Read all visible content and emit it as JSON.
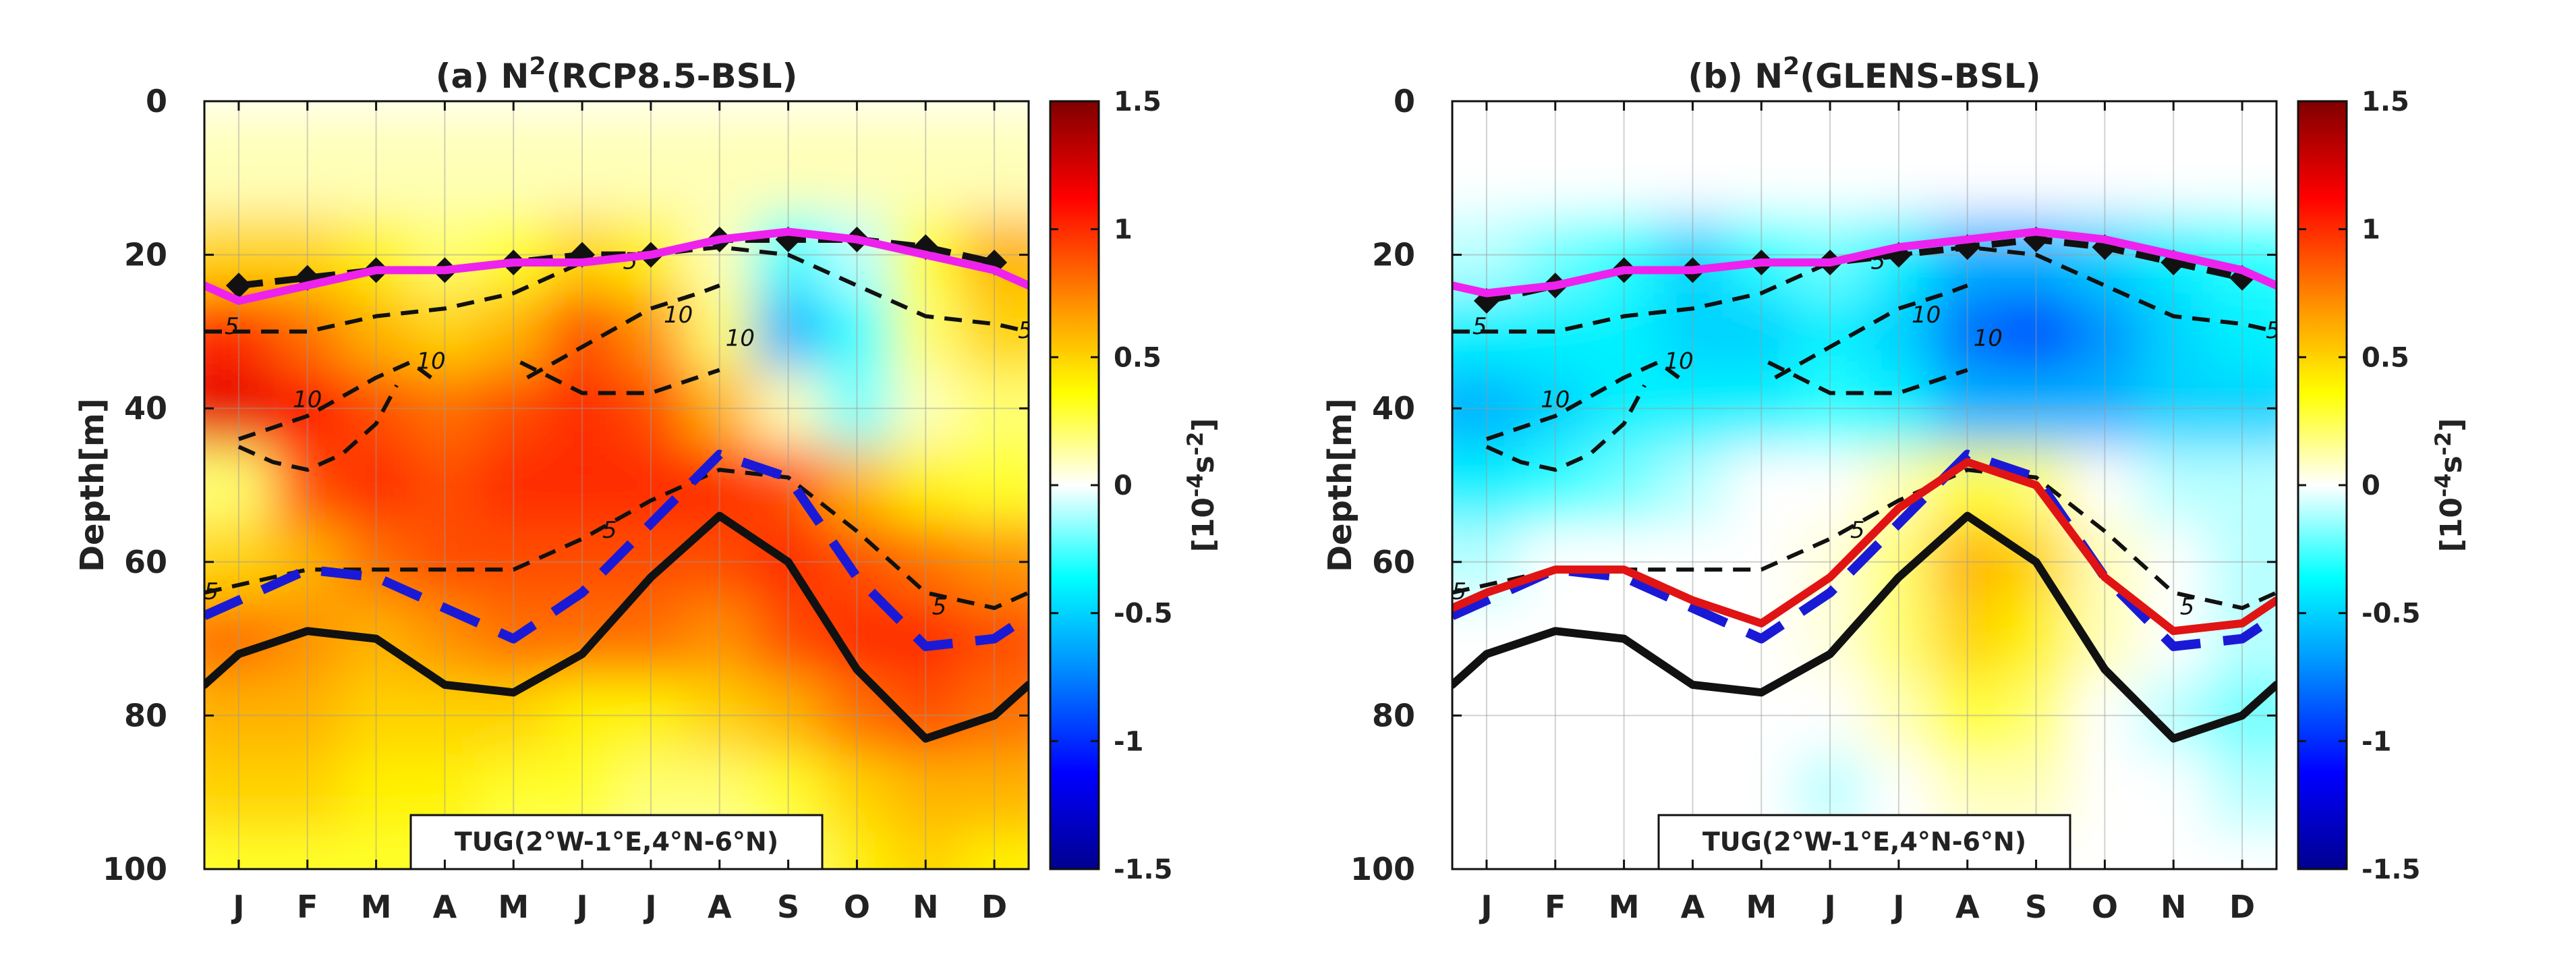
{
  "chart_data": [
    {
      "type": "heatmap",
      "title_main": "(a) N",
      "title_sup": "2",
      "title_tail": "(RCP8.5-BSL)",
      "ylabel": "Depth[m]",
      "categories": [
        "J",
        "F",
        "M",
        "A",
        "M",
        "J",
        "J",
        "A",
        "S",
        "O",
        "N",
        "D"
      ],
      "yticks": [
        0,
        20,
        40,
        60,
        80,
        100
      ],
      "ylim": [
        0,
        100
      ],
      "grid": true,
      "region_label": "TUG(2°W-1°E,4°N-6°N)",
      "colorbar": {
        "min": -1.5,
        "max": 1.5,
        "ticks": [
          1.5,
          1,
          0.5,
          0,
          -0.5,
          -1,
          -1.5
        ],
        "tick_labels": [
          "1.5",
          "1",
          "0.5",
          "0",
          "-0.5",
          "-1",
          "-1.5"
        ],
        "label_base": "[10",
        "label_sup": "-4",
        "label_mid": "s",
        "label_sup2": "-2",
        "label_end": "]",
        "colormap": "jet-white-center"
      },
      "field": [
        {
          "depth": 10,
          "values": [
            0.1,
            0.1,
            0.1,
            0.1,
            0.1,
            0.1,
            0.1,
            0.1,
            0.1,
            0.1,
            0.1,
            0.1
          ]
        },
        {
          "depth": 20,
          "values": [
            0.5,
            0.5,
            0.4,
            0.2,
            0.3,
            0.5,
            0.4,
            0.1,
            -0.3,
            -0.1,
            0.3,
            0.6
          ]
        },
        {
          "depth": 30,
          "values": [
            1.0,
            0.8,
            0.6,
            0.5,
            0.6,
            0.9,
            0.7,
            0.2,
            -0.6,
            -0.3,
            0.2,
            0.5
          ]
        },
        {
          "depth": 40,
          "values": [
            1.2,
            1.1,
            0.9,
            0.8,
            0.9,
            1.0,
            0.9,
            0.6,
            0.1,
            -0.2,
            0.1,
            0.2
          ]
        },
        {
          "depth": 50,
          "values": [
            0.2,
            0.9,
            1.0,
            0.9,
            1.0,
            1.0,
            1.0,
            1.0,
            0.9,
            0.6,
            0.4,
            0.3
          ]
        },
        {
          "depth": 60,
          "values": [
            0.5,
            0.6,
            0.8,
            0.9,
            0.9,
            0.9,
            0.9,
            0.9,
            1.0,
            0.9,
            0.8,
            0.7
          ]
        },
        {
          "depth": 70,
          "values": [
            0.8,
            0.7,
            0.6,
            0.7,
            0.8,
            0.8,
            0.8,
            0.7,
            0.9,
            1.0,
            1.0,
            0.9
          ]
        },
        {
          "depth": 80,
          "values": [
            0.6,
            0.6,
            0.5,
            0.5,
            0.5,
            0.4,
            0.4,
            0.5,
            0.6,
            0.8,
            0.9,
            0.8
          ]
        },
        {
          "depth": 90,
          "values": [
            0.5,
            0.5,
            0.4,
            0.4,
            0.3,
            0.3,
            0.2,
            0.2,
            0.3,
            0.5,
            0.6,
            0.6
          ]
        },
        {
          "depth": 100,
          "values": [
            0.3,
            0.3,
            0.3,
            0.3,
            0.2,
            0.2,
            0.1,
            0.1,
            0.2,
            0.4,
            0.5,
            0.4
          ]
        }
      ],
      "lines": [
        {
          "style": "black-diamond",
          "months": [
            0.5,
            1.5,
            2.5,
            3.5,
            4.5,
            5.5,
            6.5,
            7.5,
            8.5,
            9.5,
            10.5,
            11.5
          ],
          "values": [
            24,
            23,
            22,
            22,
            21,
            20,
            20,
            18,
            18,
            18,
            19,
            21
          ]
        },
        {
          "style": "magenta",
          "months": [
            0,
            0.5,
            1.5,
            2.5,
            3.5,
            4.5,
            5.5,
            6.5,
            7.5,
            8.5,
            9.5,
            10.5,
            11.5,
            12
          ],
          "values": [
            24,
            26,
            24,
            22,
            22,
            21,
            21,
            20,
            18,
            17,
            18,
            20,
            22,
            24
          ]
        },
        {
          "style": "blue-dashed",
          "months": [
            0,
            0.5,
            1.5,
            2.5,
            3.5,
            4.5,
            5.5,
            6.5,
            7.5,
            8.5,
            9.5,
            10.5,
            11.5,
            12
          ],
          "values": [
            67,
            65,
            61,
            62,
            66,
            70,
            64,
            55,
            46,
            49,
            62,
            71,
            70,
            67
          ]
        },
        {
          "style": "black-solid",
          "months": [
            0,
            0.5,
            1.5,
            2.5,
            3.5,
            4.5,
            5.5,
            6.5,
            7.5,
            8.5,
            9.5,
            10.5,
            11.5,
            12
          ],
          "values": [
            76,
            72,
            69,
            70,
            76,
            77,
            72,
            62,
            54,
            60,
            74,
            83,
            80,
            76
          ]
        }
      ],
      "contours": [
        {
          "months": [
            0,
            0.5,
            1.5,
            2.5,
            3.5,
            4.5,
            5.5,
            6.5,
            7.5,
            8.5,
            9.5,
            10.5,
            11.5,
            12
          ],
          "values": [
            30,
            30,
            30,
            28,
            27,
            25,
            21,
            20,
            19,
            20,
            24,
            28,
            29,
            30
          ]
        },
        {
          "months": [
            0.5,
            1.5,
            2.5,
            3,
            3.3
          ],
          "values": [
            44,
            41,
            36,
            34,
            36
          ]
        },
        {
          "months": [
            0.5,
            1,
            1.5,
            2,
            2.5,
            2.8
          ],
          "values": [
            45,
            47,
            48,
            46,
            42,
            37
          ]
        },
        {
          "months": [
            4.7,
            5.5,
            6.5,
            7.2,
            7.5
          ],
          "values": [
            36,
            32,
            27,
            25,
            24
          ]
        },
        {
          "months": [
            4.6,
            5.5,
            6.5,
            7.5
          ],
          "values": [
            34,
            38,
            38,
            35
          ]
        },
        {
          "months": [
            0,
            0.5,
            1.5,
            2.5,
            3.5,
            4.5,
            5.5,
            6.5,
            7.5,
            8.5,
            9.5,
            10.5,
            11.5,
            12
          ],
          "values": [
            64,
            63,
            61,
            61,
            61,
            61,
            57,
            52,
            48,
            49,
            56,
            64,
            66,
            64
          ]
        }
      ],
      "contour_labels": [
        {
          "text": "5",
          "month": 0.4,
          "depth": 29.5
        },
        {
          "text": "10",
          "month": 1.5,
          "depth": 39
        },
        {
          "text": "10",
          "month": 3.3,
          "depth": 34
        },
        {
          "text": "5",
          "month": 6.2,
          "depth": 21
        },
        {
          "text": "10",
          "month": 6.9,
          "depth": 28
        },
        {
          "text": "10",
          "month": 7.8,
          "depth": 31
        },
        {
          "text": "5",
          "month": 11.95,
          "depth": 30
        },
        {
          "text": "5",
          "month": 0.1,
          "depth": 64
        },
        {
          "text": "5",
          "month": 5.9,
          "depth": 56
        },
        {
          "text": "5",
          "month": 10.7,
          "depth": 66
        }
      ]
    },
    {
      "type": "heatmap",
      "title_main": "(b) N",
      "title_sup": "2",
      "title_tail": "(GLENS-BSL)",
      "ylabel": "Depth[m]",
      "categories": [
        "J",
        "F",
        "M",
        "A",
        "M",
        "J",
        "J",
        "A",
        "S",
        "O",
        "N",
        "D"
      ],
      "yticks": [
        0,
        20,
        40,
        60,
        80,
        100
      ],
      "ylim": [
        0,
        100
      ],
      "grid": true,
      "region_label": "TUG(2°W-1°E,4°N-6°N)",
      "colorbar": {
        "min": -1.5,
        "max": 1.5,
        "ticks": [
          1.5,
          1,
          0.5,
          0,
          -0.5,
          -1,
          -1.5
        ],
        "tick_labels": [
          "1.5",
          "1",
          "0.5",
          "0",
          "-0.5",
          "-1",
          "-1.5"
        ],
        "label_base": "[10",
        "label_sup": "-4",
        "label_mid": "s",
        "label_sup2": "-2",
        "label_end": "]",
        "colormap": "jet-white-center"
      },
      "field": [
        {
          "depth": 10,
          "values": [
            0,
            0,
            0,
            0,
            0,
            0,
            0,
            0,
            0,
            0,
            0,
            0
          ]
        },
        {
          "depth": 20,
          "values": [
            -0.1,
            -0.2,
            -0.3,
            -0.5,
            -0.3,
            -0.2,
            -0.4,
            -0.6,
            -0.6,
            -0.5,
            -0.4,
            -0.3
          ]
        },
        {
          "depth": 30,
          "values": [
            -0.4,
            -0.4,
            -0.4,
            -0.5,
            -0.5,
            -0.4,
            -0.5,
            -0.8,
            -0.9,
            -0.7,
            -0.5,
            -0.4
          ]
        },
        {
          "depth": 40,
          "values": [
            -0.6,
            -0.5,
            -0.4,
            -0.4,
            -0.4,
            -0.3,
            -0.4,
            -0.6,
            -0.6,
            -0.6,
            -0.5,
            -0.5
          ]
        },
        {
          "depth": 50,
          "values": [
            -0.4,
            -0.3,
            -0.2,
            -0.1,
            0,
            0,
            0.1,
            0.3,
            0.2,
            0,
            -0.1,
            -0.1
          ]
        },
        {
          "depth": 60,
          "values": [
            -0.1,
            0,
            0,
            0,
            0,
            0.05,
            0.2,
            0.6,
            0.5,
            0.1,
            0,
            -0.1
          ]
        },
        {
          "depth": 70,
          "values": [
            0,
            0,
            0,
            0,
            0,
            0.05,
            0.2,
            0.5,
            0.4,
            0.1,
            0,
            -0.1
          ]
        },
        {
          "depth": 80,
          "values": [
            0,
            0,
            0,
            0,
            0,
            0,
            0.1,
            0.3,
            0.2,
            0,
            -0.1,
            -0.2
          ]
        },
        {
          "depth": 90,
          "values": [
            0,
            0,
            0,
            0,
            0,
            -0.1,
            0,
            0.1,
            0.1,
            0,
            0,
            -0.1
          ]
        },
        {
          "depth": 100,
          "values": [
            0,
            0,
            0,
            0,
            0,
            0,
            0,
            0,
            0,
            0,
            0,
            0
          ]
        }
      ],
      "lines": [
        {
          "style": "black-diamond",
          "months": [
            0.5,
            1.5,
            2.5,
            3.5,
            4.5,
            5.5,
            6.5,
            7.5,
            8.5,
            9.5,
            10.5,
            11.5
          ],
          "values": [
            26,
            24,
            22,
            22,
            21,
            21,
            20,
            19,
            18,
            19,
            21,
            23
          ]
        },
        {
          "style": "magenta",
          "months": [
            0,
            0.5,
            1.5,
            2.5,
            3.5,
            4.5,
            5.5,
            6.5,
            7.5,
            8.5,
            9.5,
            10.5,
            11.5,
            12
          ],
          "values": [
            24,
            25,
            24,
            22,
            22,
            21,
            21,
            19,
            18,
            17,
            18,
            20,
            22,
            24
          ]
        },
        {
          "style": "blue-dashed",
          "months": [
            0,
            0.5,
            1.5,
            2.5,
            3.5,
            4.5,
            5.5,
            6.5,
            7.5,
            8.5,
            9.5,
            10.5,
            11.5,
            12
          ],
          "values": [
            67,
            65,
            61,
            62,
            66,
            70,
            64,
            55,
            46,
            49,
            62,
            71,
            70,
            67
          ]
        },
        {
          "style": "red",
          "months": [
            0,
            0.5,
            1.5,
            2.5,
            3.5,
            4.5,
            5.5,
            6.5,
            7.5,
            8.5,
            9.5,
            10.5,
            11.5,
            12
          ],
          "values": [
            66,
            64,
            61,
            61,
            65,
            68,
            62,
            53,
            47,
            50,
            62,
            69,
            68,
            65
          ]
        },
        {
          "style": "black-solid",
          "months": [
            0,
            0.5,
            1.5,
            2.5,
            3.5,
            4.5,
            5.5,
            6.5,
            7.5,
            8.5,
            9.5,
            10.5,
            11.5,
            12
          ],
          "values": [
            76,
            72,
            69,
            70,
            76,
            77,
            72,
            62,
            54,
            60,
            74,
            83,
            80,
            76
          ]
        }
      ],
      "contours": [
        {
          "months": [
            0,
            0.5,
            1.5,
            2.5,
            3.5,
            4.5,
            5.5,
            6.5,
            7.5,
            8.5,
            9.5,
            10.5,
            11.5,
            12
          ],
          "values": [
            30,
            30,
            30,
            28,
            27,
            25,
            21,
            20,
            19,
            20,
            24,
            28,
            29,
            30
          ]
        },
        {
          "months": [
            0.5,
            1.5,
            2.5,
            3,
            3.3
          ],
          "values": [
            44,
            41,
            36,
            34,
            36
          ]
        },
        {
          "months": [
            0.5,
            1,
            1.5,
            2,
            2.5,
            2.8
          ],
          "values": [
            45,
            47,
            48,
            46,
            42,
            37
          ]
        },
        {
          "months": [
            4.7,
            5.5,
            6.5,
            7.2,
            7.5
          ],
          "values": [
            36,
            32,
            27,
            25,
            24
          ]
        },
        {
          "months": [
            4.6,
            5.5,
            6.5,
            7.5
          ],
          "values": [
            34,
            38,
            38,
            35
          ]
        },
        {
          "months": [
            0,
            0.5,
            1.5,
            2.5,
            3.5,
            4.5,
            5.5,
            6.5,
            7.5,
            8.5,
            9.5,
            10.5,
            11.5,
            12
          ],
          "values": [
            64,
            63,
            61,
            61,
            61,
            61,
            57,
            52,
            48,
            49,
            56,
            64,
            66,
            64
          ]
        }
      ],
      "contour_labels": [
        {
          "text": "5",
          "month": 0.4,
          "depth": 29.5
        },
        {
          "text": "10",
          "month": 1.5,
          "depth": 39
        },
        {
          "text": "10",
          "month": 3.3,
          "depth": 34
        },
        {
          "text": "5",
          "month": 6.2,
          "depth": 21
        },
        {
          "text": "10",
          "month": 6.9,
          "depth": 28
        },
        {
          "text": "10",
          "month": 7.8,
          "depth": 31
        },
        {
          "text": "5",
          "month": 11.95,
          "depth": 30
        },
        {
          "text": "5",
          "month": 0.1,
          "depth": 64
        },
        {
          "text": "5",
          "month": 5.9,
          "depth": 56
        },
        {
          "text": "5",
          "month": 10.7,
          "depth": 66
        }
      ]
    }
  ]
}
